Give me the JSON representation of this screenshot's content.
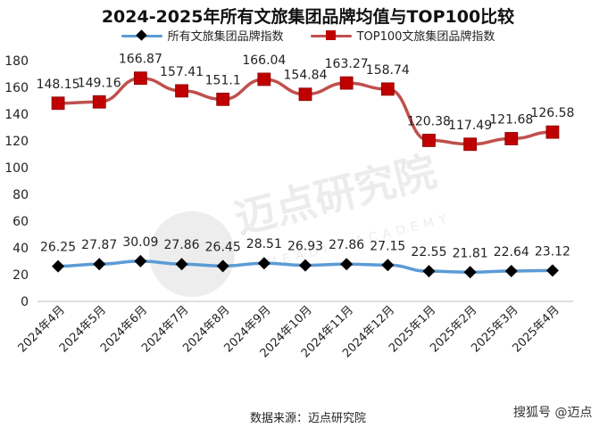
{
  "chart_data": {
    "type": "line",
    "title": "2024-2025年所有文旅集团品牌均值与TOP100比较",
    "categories": [
      "2024年4月",
      "2024年5月",
      "2024年6月",
      "2024年7月",
      "2024年8月",
      "2024年9月",
      "2024年10月",
      "2024年11月",
      "2024年12月",
      "2025年1月",
      "2025年2月",
      "2025年3月",
      "2025年4月"
    ],
    "series": [
      {
        "name": "所有文旅集团品牌指数",
        "color": "#5b9bd5",
        "marker": "diamond",
        "values": [
          26.25,
          27.87,
          30.09,
          27.86,
          26.45,
          28.51,
          26.93,
          27.86,
          27.15,
          22.55,
          21.81,
          22.64,
          23.12
        ]
      },
      {
        "name": "TOP100文旅集团品牌指数",
        "color": "#c0504d",
        "marker": "square",
        "values": [
          148.15,
          149.16,
          166.87,
          157.41,
          151.1,
          166.04,
          154.84,
          163.27,
          158.74,
          120.38,
          117.49,
          121.68,
          126.58
        ]
      }
    ],
    "ylim": [
      0,
      180
    ],
    "yticks": [
      0,
      20,
      40,
      60,
      80,
      100,
      120,
      140,
      160,
      180
    ],
    "grid": false,
    "legend": "top"
  },
  "source_text": "数据来源：迈点研究院",
  "watermark_text": "搜狐号 @迈点",
  "background_watermark": "迈点研究院",
  "background_watermark_en": "MEADIN ACADEMY"
}
